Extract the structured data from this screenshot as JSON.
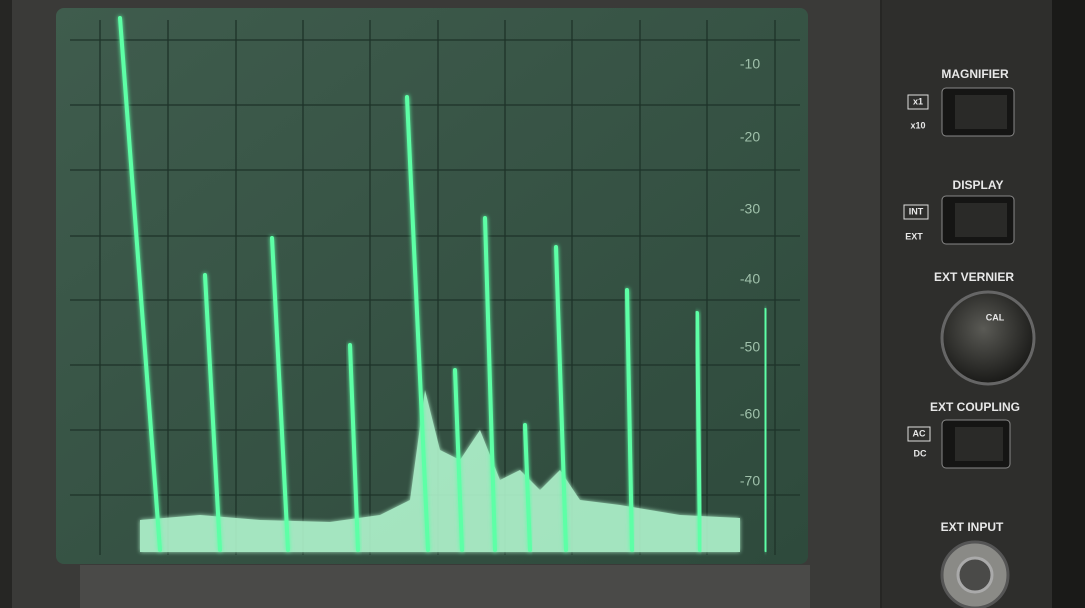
{
  "screen": {
    "scale_labels": [
      "-10",
      "-20",
      "-30",
      "-40",
      "-50",
      "-60",
      "-70"
    ]
  },
  "panel": {
    "magnifier": {
      "label": "MAGNIFIER",
      "options": [
        "x1",
        "x10"
      ]
    },
    "display": {
      "label": "DISPLAY",
      "options": [
        "INT",
        "EXT"
      ]
    },
    "ext_vernier": {
      "label": "EXT VERNIER",
      "knob": "CAL"
    },
    "ext_coupling": {
      "label": "EXT COUPLING",
      "options": [
        "AC",
        "DC"
      ]
    },
    "ext_input": {
      "label": "EXT INPUT"
    }
  }
}
